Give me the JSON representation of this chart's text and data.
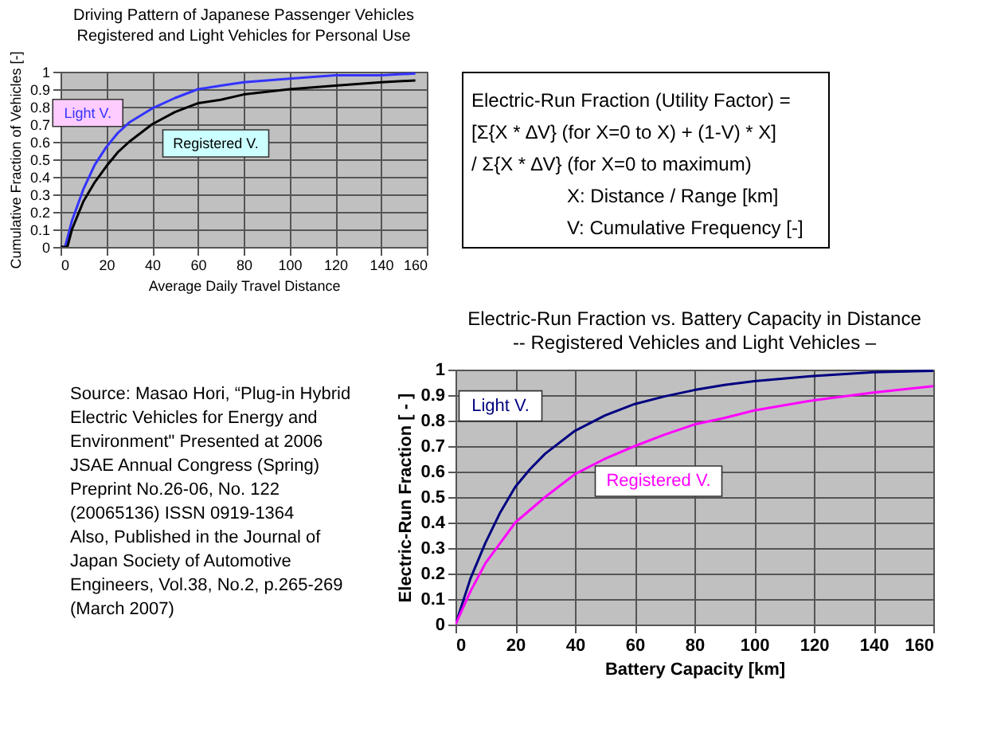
{
  "chart_data": [
    {
      "type": "line",
      "title": "Driving Pattern of Japanese Passenger Vehicles",
      "subtitle": "Registered and Light Vehicles for Personal Use",
      "xlabel": "Average Daily Travel Distance",
      "ylabel": "Cumulative Fraction of Vehicles [-]",
      "xlim": [
        0,
        160
      ],
      "xticks": [
        0,
        20,
        40,
        60,
        80,
        100,
        120,
        140,
        160
      ],
      "ylim": [
        0,
        1
      ],
      "yticks": [
        0,
        0.1,
        0.2,
        0.3,
        0.4,
        0.5,
        0.6,
        0.7,
        0.8,
        0.9,
        1
      ],
      "grid": true,
      "series": [
        {
          "name": "Light V.",
          "color": "#3333ff",
          "x": [
            0,
            2,
            5,
            10,
            15,
            20,
            25,
            30,
            40,
            50,
            60,
            70,
            80,
            100,
            120,
            140,
            155
          ],
          "values": [
            0,
            0,
            0.15,
            0.33,
            0.47,
            0.57,
            0.65,
            0.71,
            0.79,
            0.85,
            0.9,
            0.92,
            0.94,
            0.96,
            0.98,
            0.98,
            0.99
          ]
        },
        {
          "name": "Registered V.",
          "color": "#000000",
          "x": [
            0,
            3,
            5,
            10,
            15,
            20,
            25,
            30,
            40,
            50,
            60,
            70,
            80,
            100,
            120,
            140,
            155
          ],
          "values": [
            0,
            0,
            0.1,
            0.26,
            0.37,
            0.46,
            0.54,
            0.6,
            0.7,
            0.77,
            0.82,
            0.84,
            0.87,
            0.9,
            0.92,
            0.94,
            0.95
          ]
        }
      ]
    },
    {
      "type": "other",
      "annotations": [
        "Electric-Run Fraction (Utility Factor) =",
        "[Σ{X * ∆V} (for X=0 to X) + (1-V) * X]",
        "/ Σ{X * ∆V} (for X=0 to maximum)",
        "X: Distance / Range [km]",
        "V: Cumulative Frequency [-]"
      ]
    },
    {
      "type": "line",
      "title": "Electric-Run Fraction vs. Battery Capacity in Distance",
      "subtitle": "-- Registered Vehicles and Light Vehicles –",
      "xlabel": "Battery Capacity [km]",
      "ylabel": "Electric-Run Fraction [ - ]",
      "xlim": [
        0,
        160
      ],
      "xticks": [
        0,
        20,
        40,
        60,
        80,
        100,
        120,
        140,
        160
      ],
      "ylim": [
        0,
        1
      ],
      "yticks": [
        0,
        0.1,
        0.2,
        0.3,
        0.4,
        0.5,
        0.6,
        0.7,
        0.8,
        0.9,
        1
      ],
      "grid": true,
      "series": [
        {
          "name": "Light V.",
          "color": "#000080",
          "x": [
            0,
            5,
            10,
            15,
            20,
            25,
            30,
            40,
            50,
            60,
            70,
            80,
            90,
            100,
            120,
            140,
            160
          ],
          "values": [
            0,
            0.18,
            0.32,
            0.44,
            0.54,
            0.61,
            0.67,
            0.76,
            0.82,
            0.865,
            0.895,
            0.92,
            0.94,
            0.955,
            0.975,
            0.99,
            0.995
          ]
        },
        {
          "name": "Registered V.",
          "color": "#ff00ff",
          "x": [
            0,
            5,
            10,
            15,
            20,
            30,
            40,
            50,
            60,
            70,
            80,
            90,
            100,
            120,
            140,
            160
          ],
          "values": [
            0,
            0.13,
            0.24,
            0.32,
            0.4,
            0.5,
            0.59,
            0.65,
            0.7,
            0.745,
            0.785,
            0.81,
            0.84,
            0.88,
            0.91,
            0.935
          ]
        }
      ]
    },
    {
      "type": "other",
      "annotations": [
        "Source: Masao Hori, “Plug-in Hybrid",
        "Electric Vehicles for Energy and",
        "Environment\" Presented at 2006",
        "JSAE Annual Congress (Spring)",
        "Preprint No.26-06, No. 122",
        "(20065136) ISSN 0919-1364",
        "Also, Published in the Journal of",
        "Japan Society of Automotive",
        "Engineers, Vol.38, No.2, p.265-269",
        "(March 2007)"
      ]
    }
  ]
}
